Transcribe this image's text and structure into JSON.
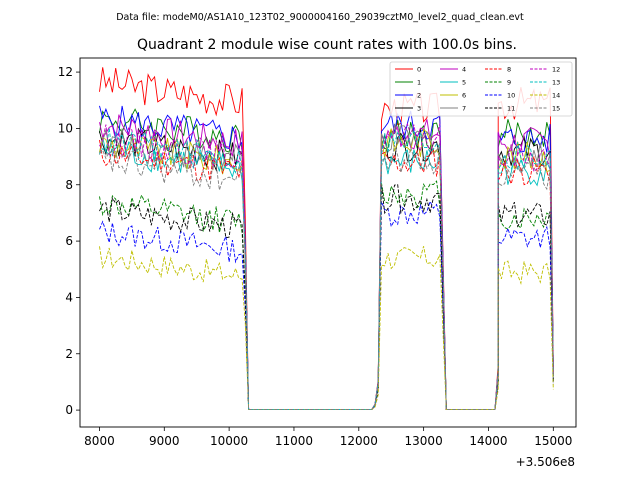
{
  "chart_data": {
    "type": "line",
    "suptitle": "Data file: modeM0/AS1A10_123T02_9000004160_29039cztM0_level2_quad_clean.evt",
    "title": "Quadrant 2 module wise count rates with 100.0s bins.",
    "xlabel": "",
    "ylabel": "",
    "x_offset_label": "+3.506e8",
    "xlim": [
      7700,
      15350
    ],
    "ylim": [
      -0.6,
      12.5
    ],
    "xticks": [
      8000,
      9000,
      10000,
      11000,
      12000,
      13000,
      14000,
      15000
    ],
    "yticks": [
      0,
      2,
      4,
      6,
      8,
      10,
      12
    ],
    "legend_location": "upper-right",
    "legend_columns": 4,
    "segments": [
      {
        "start": 8000,
        "end": 10200,
        "edge_after": [
          {
            "x": 10250,
            "frac": 0.6
          }
        ]
      },
      {
        "start": 12350,
        "end": 13250,
        "edge_before": [
          {
            "x": 12250,
            "frac": 0.02
          },
          {
            "x": 12300,
            "frac": 0.1
          }
        ],
        "edge_after": [
          {
            "x": 13300,
            "frac": 0.5
          }
        ]
      },
      {
        "start": 14150,
        "end": 14950,
        "edge_before": [
          {
            "x": 14150,
            "frac": 0.15
          }
        ],
        "edge_after": [
          {
            "x": 15000,
            "frac": 0.15
          }
        ]
      }
    ],
    "gaps": [
      [
        10300,
        12200
      ],
      [
        13350,
        14100
      ]
    ],
    "series": [
      {
        "name": "0",
        "color": "#ff0000",
        "dash": "solid",
        "base": [
          11.3,
          10.7,
          10.9
        ]
      },
      {
        "name": "1",
        "color": "#008000",
        "dash": "solid",
        "base": [
          10.0,
          9.8,
          9.8
        ]
      },
      {
        "name": "2",
        "color": "#0000ff",
        "dash": "solid",
        "base": [
          10.0,
          10.1,
          9.6
        ]
      },
      {
        "name": "3",
        "color": "#000000",
        "dash": "solid",
        "base": [
          9.3,
          9.4,
          9.2
        ]
      },
      {
        "name": "4",
        "color": "#bf00bf",
        "dash": "solid",
        "base": [
          9.8,
          9.8,
          9.5
        ]
      },
      {
        "name": "5",
        "color": "#00bfbf",
        "dash": "solid",
        "base": [
          8.9,
          8.8,
          8.5
        ]
      },
      {
        "name": "6",
        "color": "#bfbf00",
        "dash": "solid",
        "base": [
          9.1,
          9.5,
          9.0
        ]
      },
      {
        "name": "7",
        "color": "#808080",
        "dash": "solid",
        "base": [
          9.2,
          9.6,
          9.0
        ]
      },
      {
        "name": "8",
        "color": "#ff0000",
        "dash": "dashed",
        "base": [
          8.8,
          8.8,
          8.5
        ]
      },
      {
        "name": "9",
        "color": "#008000",
        "dash": "dashed",
        "base": [
          7.0,
          7.7,
          6.8
        ]
      },
      {
        "name": "10",
        "color": "#0000ff",
        "dash": "dashed",
        "base": [
          6.0,
          7.0,
          6.1
        ]
      },
      {
        "name": "11",
        "color": "#000000",
        "dash": "dashed",
        "base": [
          6.8,
          7.5,
          6.9
        ]
      },
      {
        "name": "12",
        "color": "#bf00bf",
        "dash": "dashed",
        "base": [
          9.3,
          9.6,
          9.0
        ]
      },
      {
        "name": "13",
        "color": "#00bfbf",
        "dash": "dashed",
        "base": [
          9.2,
          9.5,
          9.0
        ]
      },
      {
        "name": "14",
        "color": "#bfbf00",
        "dash": "dashed",
        "base": [
          5.1,
          5.4,
          4.9
        ]
      },
      {
        "name": "15",
        "color": "#808080",
        "dash": "dashed",
        "base": [
          8.5,
          8.9,
          8.3
        ]
      }
    ]
  }
}
